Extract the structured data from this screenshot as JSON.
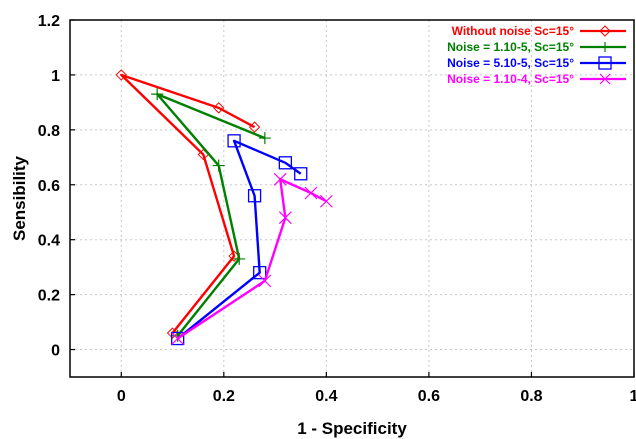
{
  "chart_data": {
    "type": "line",
    "title": "",
    "xlabel": "1 - Specificity",
    "ylabel": "Sensibility",
    "xlim": [
      -0.1,
      1
    ],
    "ylim": [
      -0.1,
      1.2
    ],
    "xticks": [
      0,
      0.2,
      0.4,
      0.6,
      0.8,
      1
    ],
    "xtick_labels": [
      "0",
      "0.2",
      "0.4",
      "0.6",
      "0.8",
      "1"
    ],
    "yticks": [
      0,
      0.2,
      0.4,
      0.6,
      0.8,
      1,
      1.2
    ],
    "ytick_labels": [
      "0",
      "0.2",
      "0.4",
      "0.6",
      "0.8",
      "1",
      "1.2"
    ],
    "grid": true,
    "legend_position": "top-right",
    "series": [
      {
        "name": "Without noise Sc=15°",
        "color": "#ff0000",
        "marker": "diamond",
        "x": [
          0.26,
          0.19,
          0.0,
          0.16,
          0.22,
          0.1
        ],
        "y": [
          0.81,
          0.88,
          1.0,
          0.71,
          0.34,
          0.06
        ]
      },
      {
        "name": "Noise = 1.10-5, Sc=15°",
        "color": "#008000",
        "marker": "plus",
        "x": [
          0.28,
          0.07,
          0.19,
          0.23,
          0.11
        ],
        "y": [
          0.77,
          0.93,
          0.67,
          0.33,
          0.05
        ]
      },
      {
        "name": "Noise = 5.10-5, Sc=15°",
        "color": "#0000ff",
        "marker": "square",
        "x": [
          0.35,
          0.32,
          0.22,
          0.26,
          0.27,
          0.11
        ],
        "y": [
          0.64,
          0.68,
          0.76,
          0.56,
          0.28,
          0.04
        ]
      },
      {
        "name": "Noise = 1.10-4, Sc=15°",
        "color": "#ff00ff",
        "marker": "x",
        "x": [
          0.4,
          0.37,
          0.31,
          0.32,
          0.28,
          0.11
        ],
        "y": [
          0.54,
          0.57,
          0.62,
          0.48,
          0.25,
          0.04
        ]
      }
    ]
  }
}
